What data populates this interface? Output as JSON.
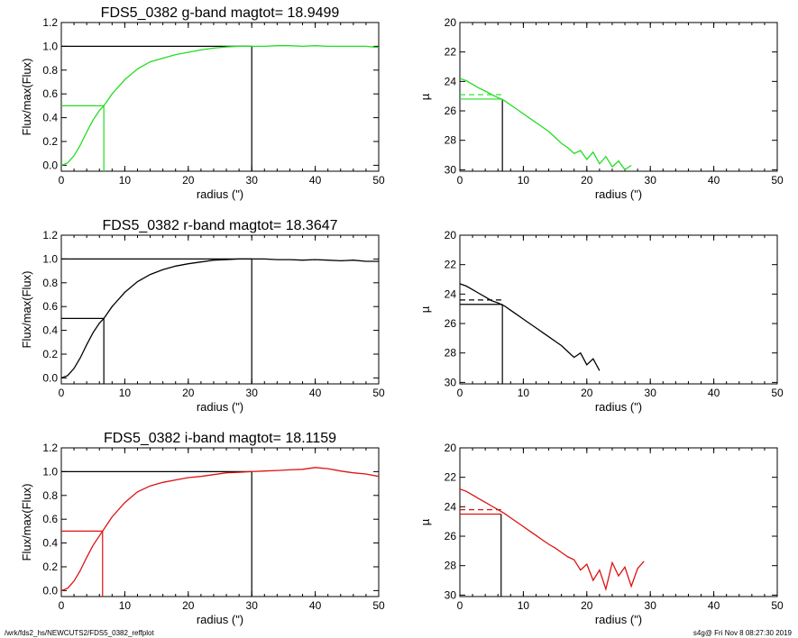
{
  "footer": {
    "path": "/wrk/fds2_hs/NEWCUTS2/FDS5_0382_reffplot",
    "stamp": "s4g@  Fri Nov  8 08:27:30 2019"
  },
  "colors": {
    "g": "#22dd22",
    "r": "#000000",
    "i": "#dd1111",
    "axis": "#000000"
  },
  "chart_data": [
    {
      "type": "line",
      "panel": "growth-curve",
      "band": "g",
      "title": "FDS5_0382 g-band  magtot=     18.9499",
      "xlabel": "radius (\")",
      "ylabel": "Flux/max(Flux)",
      "xlim": [
        0,
        50
      ],
      "ylim": [
        -0.05,
        1.2
      ],
      "xticks": [
        "0",
        "10",
        "20",
        "30",
        "40",
        "50"
      ],
      "yticks": [
        "0.0",
        "0.2",
        "0.4",
        "0.6",
        "0.8",
        "1.0",
        "1.2"
      ],
      "series": [
        {
          "x": [
            0,
            1,
            2,
            3,
            4,
            5,
            6,
            6.7,
            8,
            10,
            12,
            14,
            16,
            18,
            20,
            22,
            24,
            26,
            28,
            30,
            32,
            34,
            36,
            38,
            40,
            42,
            44,
            46,
            48,
            50
          ],
          "y": [
            0,
            0.02,
            0.08,
            0.17,
            0.28,
            0.38,
            0.46,
            0.5,
            0.6,
            0.72,
            0.81,
            0.87,
            0.9,
            0.93,
            0.95,
            0.97,
            0.985,
            0.995,
            1.0,
            1.0,
            1.0,
            1.005,
            1.005,
            1.0,
            1.005,
            1.0,
            1.0,
            1.0,
            1.0,
            0.99
          ]
        }
      ],
      "half_light": {
        "r_eff": 6.7,
        "level": 0.5
      },
      "total": {
        "r_tot": 30,
        "level": 1.0
      }
    },
    {
      "type": "line",
      "panel": "surface-brightness",
      "band": "g",
      "xlabel": "radius (\")",
      "ylabel": "µ",
      "xlim": [
        0,
        50
      ],
      "ylim": [
        30.1,
        20
      ],
      "xticks": [
        "0",
        "10",
        "20",
        "30",
        "40",
        "50"
      ],
      "yticks": [
        "20",
        "22",
        "24",
        "26",
        "28",
        "30"
      ],
      "series": [
        {
          "x": [
            0,
            1,
            2,
            3,
            4,
            5,
            6,
            7,
            8,
            9,
            10,
            11,
            12,
            13,
            14,
            15,
            16,
            17,
            18,
            19,
            20,
            21,
            22,
            23,
            24,
            25,
            26,
            27
          ],
          "y": [
            23.8,
            23.95,
            24.2,
            24.45,
            24.65,
            24.9,
            25.1,
            25.3,
            25.6,
            25.9,
            26.2,
            26.5,
            26.8,
            27.1,
            27.4,
            27.8,
            28.2,
            28.5,
            28.9,
            28.7,
            29.3,
            28.8,
            29.6,
            29.1,
            29.8,
            29.4,
            30.0,
            29.7
          ]
        }
      ],
      "mu_eff": 25.2,
      "mu_mean": 24.9,
      "r_eff": 6.7
    },
    {
      "type": "line",
      "panel": "growth-curve",
      "band": "r",
      "title": "FDS5_0382 r-band  magtot=     18.3647",
      "xlabel": "radius (\")",
      "ylabel": "Flux/max(Flux)",
      "xlim": [
        0,
        50
      ],
      "ylim": [
        -0.05,
        1.2
      ],
      "xticks": [
        "0",
        "10",
        "20",
        "30",
        "40",
        "50"
      ],
      "yticks": [
        "0.0",
        "0.2",
        "0.4",
        "0.6",
        "0.8",
        "1.0",
        "1.2"
      ],
      "series": [
        {
          "x": [
            0,
            1,
            2,
            3,
            4,
            5,
            6,
            6.7,
            8,
            10,
            12,
            14,
            16,
            18,
            20,
            22,
            24,
            26,
            28,
            30,
            32,
            34,
            36,
            38,
            40,
            42,
            44,
            46,
            48,
            50
          ],
          "y": [
            0,
            0.02,
            0.08,
            0.17,
            0.28,
            0.38,
            0.46,
            0.5,
            0.6,
            0.72,
            0.81,
            0.87,
            0.91,
            0.94,
            0.96,
            0.975,
            0.99,
            0.995,
            1.0,
            1.0,
            1.0,
            0.995,
            0.995,
            0.99,
            0.995,
            0.99,
            0.985,
            0.99,
            0.98,
            0.98
          ]
        }
      ],
      "half_light": {
        "r_eff": 6.7,
        "level": 0.5
      },
      "total": {
        "r_tot": 30,
        "level": 1.0
      }
    },
    {
      "type": "line",
      "panel": "surface-brightness",
      "band": "r",
      "xlabel": "radius (\")",
      "ylabel": "µ",
      "xlim": [
        0,
        50
      ],
      "ylim": [
        30.1,
        20
      ],
      "xticks": [
        "0",
        "10",
        "20",
        "30",
        "40",
        "50"
      ],
      "yticks": [
        "20",
        "22",
        "24",
        "26",
        "28",
        "30"
      ],
      "series": [
        {
          "x": [
            0,
            1,
            2,
            3,
            4,
            5,
            6,
            7,
            8,
            9,
            10,
            11,
            12,
            13,
            14,
            15,
            16,
            17,
            18,
            19,
            20,
            21,
            22
          ],
          "y": [
            23.3,
            23.45,
            23.7,
            23.95,
            24.2,
            24.45,
            24.6,
            24.8,
            25.1,
            25.4,
            25.7,
            26.0,
            26.3,
            26.6,
            26.9,
            27.2,
            27.5,
            27.9,
            28.3,
            28.0,
            28.8,
            28.4,
            29.2
          ]
        }
      ],
      "mu_eff": 24.7,
      "mu_mean": 24.4,
      "r_eff": 6.7
    },
    {
      "type": "line",
      "panel": "growth-curve",
      "band": "i",
      "title": "FDS5_0382 i-band  magtot=     18.1159",
      "xlabel": "radius (\")",
      "ylabel": "Flux/max(Flux)",
      "xlim": [
        0,
        50
      ],
      "ylim": [
        -0.05,
        1.2
      ],
      "xticks": [
        "0",
        "10",
        "20",
        "30",
        "40",
        "50"
      ],
      "yticks": [
        "0.0",
        "0.2",
        "0.4",
        "0.6",
        "0.8",
        "1.0",
        "1.2"
      ],
      "series": [
        {
          "x": [
            0,
            1,
            2,
            3,
            4,
            5,
            6,
            6.5,
            8,
            10,
            12,
            14,
            16,
            18,
            20,
            22,
            24,
            26,
            28,
            30,
            32,
            34,
            36,
            38,
            40,
            42,
            44,
            46,
            48,
            50
          ],
          "y": [
            0,
            0.02,
            0.08,
            0.17,
            0.28,
            0.38,
            0.46,
            0.5,
            0.62,
            0.74,
            0.83,
            0.88,
            0.91,
            0.93,
            0.95,
            0.96,
            0.975,
            0.99,
            0.995,
            1.0,
            1.005,
            1.01,
            1.015,
            1.02,
            1.035,
            1.025,
            1.005,
            0.99,
            0.98,
            0.96
          ]
        }
      ],
      "half_light": {
        "r_eff": 6.5,
        "level": 0.5
      },
      "total": {
        "r_tot": 30,
        "level": 1.0
      }
    },
    {
      "type": "line",
      "panel": "surface-brightness",
      "band": "i",
      "xlabel": "radius (\")",
      "ylabel": "µ",
      "xlim": [
        0,
        50
      ],
      "ylim": [
        30.1,
        20
      ],
      "xticks": [
        "0",
        "10",
        "20",
        "30",
        "40",
        "50"
      ],
      "yticks": [
        "20",
        "22",
        "24",
        "26",
        "28",
        "30"
      ],
      "series": [
        {
          "x": [
            0,
            1,
            2,
            3,
            4,
            5,
            6,
            7,
            8,
            9,
            10,
            11,
            12,
            13,
            14,
            15,
            16,
            17,
            18,
            19,
            20,
            21,
            22,
            23,
            24,
            25,
            26,
            27,
            28,
            29
          ],
          "y": [
            22.8,
            22.95,
            23.2,
            23.45,
            23.7,
            23.95,
            24.2,
            24.45,
            24.75,
            25.05,
            25.35,
            25.65,
            25.95,
            26.25,
            26.55,
            26.8,
            27.1,
            27.4,
            27.6,
            28.3,
            27.9,
            29.0,
            28.3,
            29.6,
            27.8,
            28.7,
            28.1,
            29.4,
            28.2,
            27.7
          ]
        }
      ],
      "mu_eff": 24.5,
      "mu_mean": 24.2,
      "r_eff": 6.5
    }
  ]
}
